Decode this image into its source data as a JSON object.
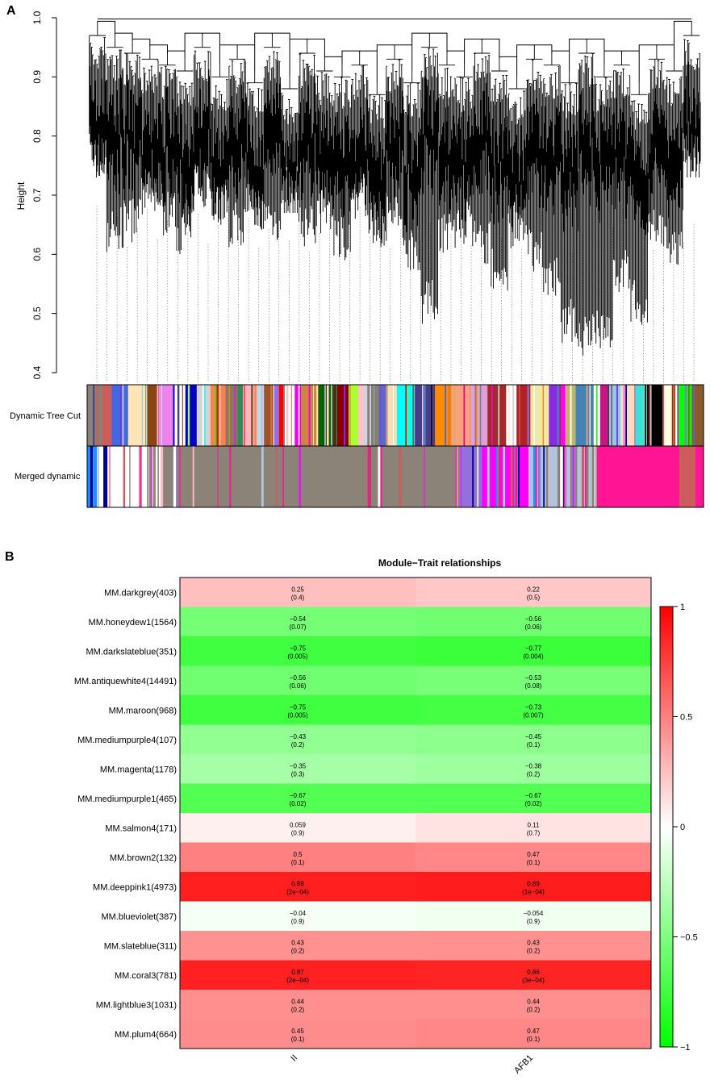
{
  "panel_a": {
    "label": "A",
    "ylabel": "Height",
    "yticks": [
      "0.4",
      "0.5",
      "0.6",
      "0.7",
      "0.8",
      "0.9",
      "1.0"
    ],
    "track_labels": [
      "Dynamic Tree Cut",
      "Merged dynamic"
    ],
    "colors": {
      "dynamic": [
        "#8b8378",
        "#cd5c5c",
        "#4169e1",
        "#ffe4b5",
        "#8b4513",
        "#ee82ee",
        "#ffffff",
        "#0000cd",
        "#d3d3d3",
        "#ff7f50",
        "#8b7765",
        "#2e8b57",
        "#ffb6c1",
        "#b0e0e6",
        "#a0522d",
        "#9370db",
        "#ff0000",
        "#ffffff",
        "#ee00ee",
        "#cd853f",
        "#006400",
        "#8b0000",
        "#adff2f",
        "#ffc0cb",
        "#808080",
        "#6a5acd",
        "#f5deb3",
        "#00ffff",
        "#483d8b",
        "#ff8c00",
        "#ffa07a",
        "#dda0dd",
        "#a52a2a",
        "#ffffff",
        "#b22222",
        "#eee8aa",
        "#8a2be2",
        "#ff00ff",
        "#bdb76b",
        "#4682b4",
        "#ffffff",
        "#c71585",
        "#87ceeb",
        "#ffdab9",
        "#40e0d0",
        "#000000",
        "#ffffe0",
        "#00ff00",
        "#8b5a2b"
      ],
      "merged": [
        "#1e90ff",
        "#ffffff",
        "#8b8378",
        "#cd5c5c",
        "#ff00ff",
        "#8b8378",
        "#9370db",
        "#ffffff",
        "#8b8378",
        "#ff1493",
        "#ff00ff",
        "#b0c4de",
        "#00008b",
        "#8b8378",
        "#ffb6c1",
        "#ff1493",
        "#cd5c5c"
      ]
    }
  },
  "panel_b": {
    "label": "B",
    "colorbar_ticks": [
      "1",
      "0.5",
      "0",
      "−0.5",
      "−1"
    ]
  },
  "chart_data": [
    {
      "type": "dendrogram",
      "title": "",
      "xlabel": "",
      "ylabel": "Height",
      "ylim": [
        0.4,
        1.0
      ],
      "clusters": [
        {
          "min": 0.73,
          "top": 0.99
        },
        {
          "min": 0.6,
          "top": 0.97
        },
        {
          "min": 0.62,
          "top": 0.96
        },
        {
          "min": 0.66,
          "top": 0.95
        },
        {
          "min": 0.63,
          "top": 0.94
        },
        {
          "min": 0.6,
          "top": 0.93
        },
        {
          "min": 0.68,
          "top": 0.97
        },
        {
          "min": 0.65,
          "top": 0.92
        },
        {
          "min": 0.61,
          "top": 0.95
        },
        {
          "min": 0.64,
          "top": 0.91
        },
        {
          "min": 0.62,
          "top": 0.97
        },
        {
          "min": 0.67,
          "top": 0.9
        },
        {
          "min": 0.61,
          "top": 0.96
        },
        {
          "min": 0.63,
          "top": 0.93
        },
        {
          "min": 0.59,
          "top": 0.92
        },
        {
          "min": 0.66,
          "top": 0.94
        },
        {
          "min": 0.61,
          "top": 0.89
        },
        {
          "min": 0.62,
          "top": 0.95
        },
        {
          "min": 0.57,
          "top": 0.91
        },
        {
          "min": 0.48,
          "top": 0.97
        },
        {
          "min": 0.6,
          "top": 0.94
        },
        {
          "min": 0.61,
          "top": 0.92
        },
        {
          "min": 0.58,
          "top": 0.96
        },
        {
          "min": 0.53,
          "top": 0.93
        },
        {
          "min": 0.61,
          "top": 0.9
        },
        {
          "min": 0.57,
          "top": 0.95
        },
        {
          "min": 0.52,
          "top": 0.94
        },
        {
          "min": 0.45,
          "top": 0.91
        },
        {
          "min": 0.42,
          "top": 0.96
        },
        {
          "min": 0.44,
          "top": 0.92
        },
        {
          "min": 0.53,
          "top": 0.94
        },
        {
          "min": 0.48,
          "top": 0.89
        },
        {
          "min": 0.6,
          "top": 0.95
        },
        {
          "min": 0.57,
          "top": 0.93
        },
        {
          "min": 0.73,
          "top": 0.99
        }
      ]
    },
    {
      "type": "heatmap",
      "title": "Module−Trait relationships",
      "columns": [
        "II",
        "AFB1"
      ],
      "rows": [
        "MM.darkgrey(403)",
        "MM.honeydew1(1564)",
        "MM.darkslateblue(351)",
        "MM.antiquewhite4(14491)",
        "MM.maroon(968)",
        "MM.mediumpurple4(107)",
        "MM.magenta(1178)",
        "MM.mediumpurple1(465)",
        "MM.salmon4(171)",
        "MM.brown2(132)",
        "MM.deeppink1(4973)",
        "MM.blueviolet(387)",
        "MM.slateblue(311)",
        "MM.coral3(781)",
        "MM.lightblue3(1031)",
        "MM.plum4(664)"
      ],
      "values": [
        [
          0.25,
          0.22
        ],
        [
          -0.54,
          -0.56
        ],
        [
          -0.75,
          -0.77
        ],
        [
          -0.56,
          -0.53
        ],
        [
          -0.75,
          -0.73
        ],
        [
          -0.43,
          -0.45
        ],
        [
          -0.35,
          -0.38
        ],
        [
          -0.67,
          -0.67
        ],
        [
          0.059,
          0.11
        ],
        [
          0.5,
          0.47
        ],
        [
          0.88,
          0.89
        ],
        [
          -0.04,
          -0.054
        ],
        [
          0.43,
          0.43
        ],
        [
          0.87,
          0.86
        ],
        [
          0.44,
          0.44
        ],
        [
          0.45,
          0.47
        ]
      ],
      "labels": [
        [
          "0.25",
          "0.22"
        ],
        [
          "−0.54",
          "−0.56"
        ],
        [
          "−0.75",
          "−0.77"
        ],
        [
          "−0.56",
          "−0.53"
        ],
        [
          "−0.75",
          "−0.73"
        ],
        [
          "−0.43",
          "−0.45"
        ],
        [
          "−0.35",
          "−0.38"
        ],
        [
          "−0.67",
          "−0.67"
        ],
        [
          "0.059",
          "0.11"
        ],
        [
          "0.5",
          "0.47"
        ],
        [
          "0.88",
          "0.89"
        ],
        [
          "−0.04",
          "−0.054"
        ],
        [
          "0.43",
          "0.43"
        ],
        [
          "0.87",
          "0.86"
        ],
        [
          "0.44",
          "0.44"
        ],
        [
          "0.45",
          "0.47"
        ]
      ],
      "pvalues": [
        [
          "(0.4)",
          "(0.5)"
        ],
        [
          "(0.07)",
          "(0.06)"
        ],
        [
          "(0.005)",
          "(0.004)"
        ],
        [
          "(0.06)",
          "(0.08)"
        ],
        [
          "(0.005)",
          "(0.007)"
        ],
        [
          "(0.2)",
          "(0.1)"
        ],
        [
          "(0.3)",
          "(0.2)"
        ],
        [
          "(0.02)",
          "(0.02)"
        ],
        [
          "(0.9)",
          "(0.7)"
        ],
        [
          "(0.1)",
          "(0.1)"
        ],
        [
          "(2e−04)",
          "(1e−04)"
        ],
        [
          "(0.9)",
          "(0.9)"
        ],
        [
          "(0.2)",
          "(0.2)"
        ],
        [
          "(2e−04)",
          "(3e−04)"
        ],
        [
          "(0.2)",
          "(0.2)"
        ],
        [
          "(0.1)",
          "(0.1)"
        ]
      ],
      "color_range": [
        -1,
        1
      ],
      "color_low": "#00ff00",
      "color_mid": "#ffffff",
      "color_high": "#ff0000"
    }
  ]
}
